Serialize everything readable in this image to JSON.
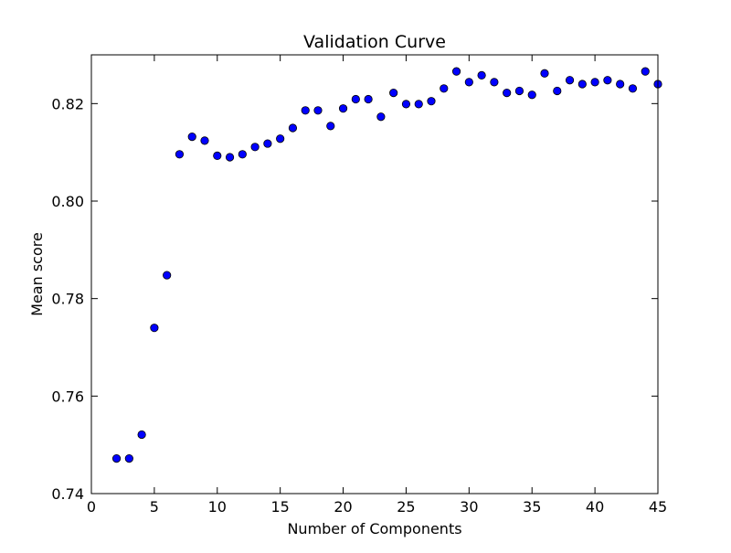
{
  "chart_data": {
    "type": "scatter",
    "title": "Validation Curve",
    "xlabel": "Number of Components",
    "ylabel": "Mean score",
    "xlim": [
      0,
      45
    ],
    "ylim": [
      0.74,
      0.83
    ],
    "xticks": [
      0,
      5,
      10,
      15,
      20,
      25,
      30,
      35,
      40,
      45
    ],
    "xtick_labels": [
      "0",
      "5",
      "10",
      "15",
      "20",
      "25",
      "30",
      "35",
      "40",
      "45"
    ],
    "yticks": [
      0.74,
      0.76,
      0.78,
      0.8,
      0.82
    ],
    "ytick_labels": [
      "0.74",
      "0.76",
      "0.78",
      "0.80",
      "0.82"
    ],
    "grid": false,
    "marker_color": "#0000ff",
    "marker_edge_color": "#000000",
    "x": [
      2,
      3,
      4,
      5,
      6,
      7,
      8,
      9,
      10,
      11,
      12,
      13,
      14,
      15,
      16,
      17,
      18,
      19,
      20,
      21,
      22,
      23,
      24,
      25,
      26,
      27,
      28,
      29,
      30,
      31,
      32,
      33,
      34,
      35,
      36,
      37,
      38,
      39,
      40,
      41,
      42,
      43,
      44,
      45
    ],
    "y": [
      0.7472,
      0.7472,
      0.7521,
      0.774,
      0.7848,
      0.8096,
      0.8132,
      0.8124,
      0.8093,
      0.809,
      0.8096,
      0.8111,
      0.8118,
      0.8128,
      0.815,
      0.8186,
      0.8186,
      0.8154,
      0.819,
      0.8209,
      0.8209,
      0.8173,
      0.8222,
      0.8199,
      0.8199,
      0.8205,
      0.8231,
      0.8266,
      0.8244,
      0.8258,
      0.8244,
      0.8222,
      0.8226,
      0.8218,
      0.8262,
      0.8226,
      0.8248,
      0.824,
      0.8244,
      0.8248,
      0.824,
      0.8231,
      0.8266,
      0.824
    ]
  }
}
